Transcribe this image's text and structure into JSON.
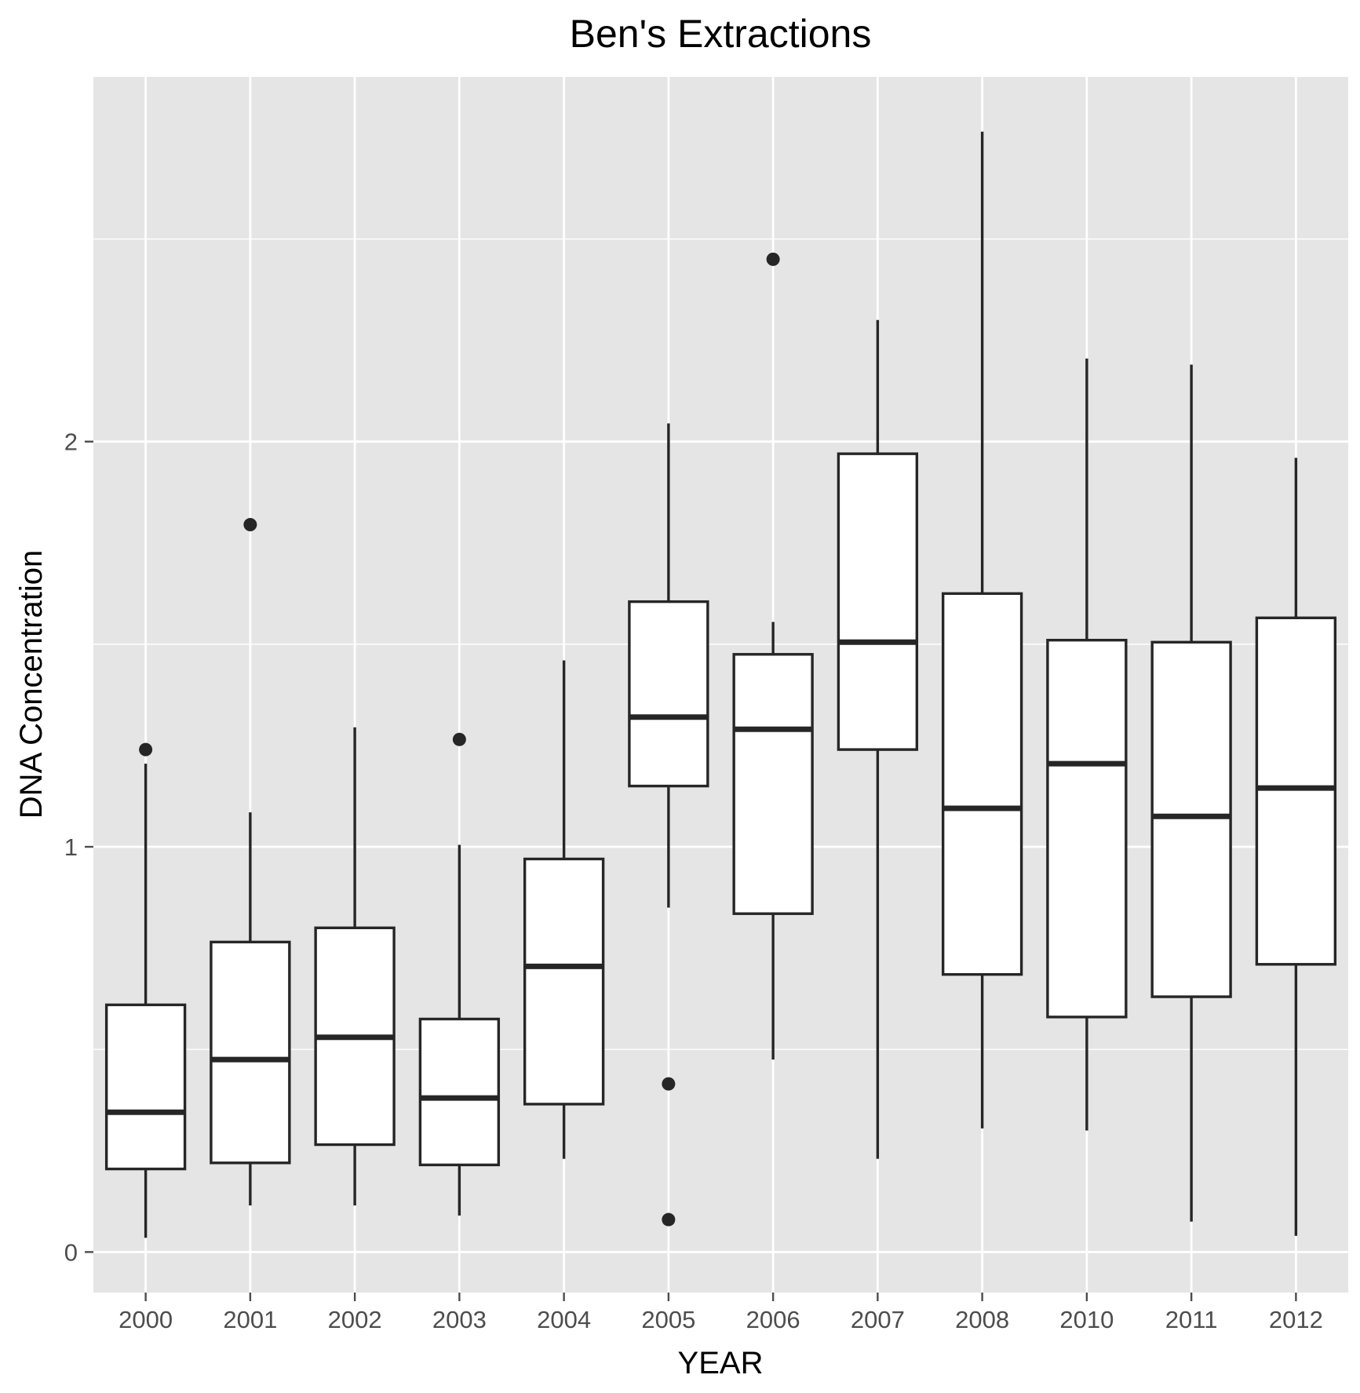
{
  "chart_data": {
    "type": "box",
    "title": "Ben's Extractions",
    "xlabel": "YEAR",
    "ylabel": "DNA Concentration",
    "ylim": [
      -0.1,
      2.9
    ],
    "yticks": [
      0,
      1,
      2
    ],
    "grid": true,
    "colors": {
      "panel": "#e5e5e5",
      "grid": "#ffffff",
      "box_fill": "#ffffff",
      "box_line": "#262626",
      "outlier": "#262626",
      "tick": "#4d4d4d"
    },
    "categories": [
      "2000",
      "2001",
      "2002",
      "2003",
      "2004",
      "2005",
      "2006",
      "2007",
      "2008",
      "2010",
      "2011",
      "2012"
    ],
    "boxes": [
      {
        "category": "2000",
        "whisker_low": 0.035,
        "q1": 0.205,
        "median": 0.345,
        "q3": 0.61,
        "whisker_high": 1.205,
        "outliers": [
          1.24
        ]
      },
      {
        "category": "2001",
        "whisker_low": 0.115,
        "q1": 0.22,
        "median": 0.475,
        "q3": 0.765,
        "whisker_high": 1.085,
        "outliers": [
          1.795
        ]
      },
      {
        "category": "2002",
        "whisker_low": 0.115,
        "q1": 0.265,
        "median": 0.53,
        "q3": 0.8,
        "whisker_high": 1.295,
        "outliers": []
      },
      {
        "category": "2003",
        "whisker_low": 0.09,
        "q1": 0.215,
        "median": 0.38,
        "q3": 0.575,
        "whisker_high": 1.005,
        "outliers": [
          1.265
        ]
      },
      {
        "category": "2004",
        "whisker_low": 0.23,
        "q1": 0.365,
        "median": 0.705,
        "q3": 0.97,
        "whisker_high": 1.46,
        "outliers": []
      },
      {
        "category": "2005",
        "whisker_low": 0.85,
        "q1": 1.15,
        "median": 1.32,
        "q3": 1.605,
        "whisker_high": 2.045,
        "outliers": [
          0.415,
          0.08
        ]
      },
      {
        "category": "2006",
        "whisker_low": 0.475,
        "q1": 0.835,
        "median": 1.29,
        "q3": 1.475,
        "whisker_high": 1.555,
        "outliers": [
          2.45
        ]
      },
      {
        "category": "2007",
        "whisker_low": 0.23,
        "q1": 1.24,
        "median": 1.505,
        "q3": 1.97,
        "whisker_high": 2.3,
        "outliers": []
      },
      {
        "category": "2008",
        "whisker_low": 0.305,
        "q1": 0.685,
        "median": 1.095,
        "q3": 1.625,
        "whisker_high": 2.765,
        "outliers": []
      },
      {
        "category": "2010",
        "whisker_low": 0.3,
        "q1": 0.58,
        "median": 1.205,
        "q3": 1.51,
        "whisker_high": 2.205,
        "outliers": []
      },
      {
        "category": "2011",
        "whisker_low": 0.075,
        "q1": 0.63,
        "median": 1.075,
        "q3": 1.505,
        "whisker_high": 2.19,
        "outliers": []
      },
      {
        "category": "2012",
        "whisker_low": 0.04,
        "q1": 0.71,
        "median": 1.145,
        "q3": 1.565,
        "whisker_high": 1.96,
        "outliers": []
      }
    ]
  }
}
